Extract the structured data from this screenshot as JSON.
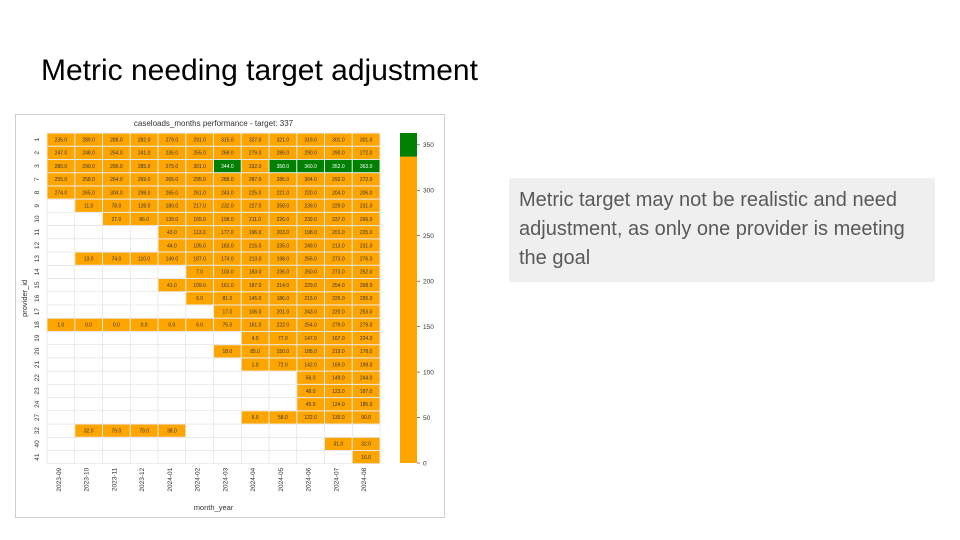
{
  "slide": {
    "title": "Metric needing target adjustment",
    "note": "Metric target may not be realistic and need adjustment, as only one provider is meeting the goal"
  },
  "colors": {
    "below_target": "#FFA500",
    "meets_target": "#008000",
    "grid": "#dddddd"
  },
  "chart_data": {
    "type": "heatmap",
    "title": "caseloads_months performance - target: 337",
    "xlabel": "month_year",
    "ylabel": "provider_id",
    "target": 337,
    "x_categories": [
      "2023-09",
      "2023-10",
      "2023-11",
      "2023-12",
      "2024-01",
      "2024-02",
      "2024-03",
      "2024-04",
      "2024-05",
      "2024-06",
      "2024-07",
      "2024-08"
    ],
    "y_categories": [
      "1",
      "2",
      "3",
      "7",
      "8",
      "9",
      "10",
      "11",
      "12",
      "13",
      "14",
      "15",
      "16",
      "17",
      "18",
      "19",
      "20",
      "21",
      "22",
      "23",
      "24",
      "27",
      "32",
      "40",
      "41"
    ],
    "values": [
      [
        235.0,
        289.0,
        288.0,
        282.0,
        279.0,
        291.0,
        315.0,
        327.0,
        321.0,
        319.0,
        301.0,
        301.0
      ],
      [
        247.0,
        248.0,
        254.0,
        241.0,
        235.0,
        255.0,
        269.0,
        279.0,
        286.0,
        290.0,
        290.0,
        272.0
      ],
      [
        280.0,
        290.0,
        290.0,
        285.0,
        275.0,
        301.0,
        344.0,
        332.0,
        358.0,
        360.0,
        352.0,
        363.0
      ],
      [
        255.0,
        258.0,
        264.0,
        269.0,
        265.0,
        295.0,
        288.0,
        287.0,
        286.0,
        304.0,
        292.0,
        272.0
      ],
      [
        274.0,
        265.0,
        304.0,
        298.0,
        265.0,
        261.0,
        243.0,
        225.0,
        221.0,
        220.0,
        204.0,
        206.0
      ],
      [
        null,
        11.0,
        78.0,
        128.0,
        180.0,
        217.0,
        232.0,
        227.0,
        258.0,
        239.0,
        229.0,
        231.0
      ],
      [
        null,
        null,
        27.0,
        86.0,
        139.0,
        165.0,
        198.0,
        211.0,
        226.0,
        239.0,
        237.0,
        266.0
      ],
      [
        null,
        null,
        null,
        null,
        43.0,
        113.0,
        177.0,
        196.0,
        203.0,
        198.0,
        201.0,
        225.0
      ],
      [
        null,
        null,
        null,
        null,
        44.0,
        105.0,
        183.0,
        215.0,
        235.0,
        249.0,
        213.0,
        231.0
      ],
      [
        null,
        13.0,
        74.0,
        110.0,
        149.0,
        187.0,
        174.0,
        213.0,
        198.0,
        256.0,
        273.0,
        276.0
      ],
      [
        null,
        null,
        null,
        null,
        null,
        7.0,
        103.0,
        183.0,
        236.0,
        250.0,
        273.0,
        262.0
      ],
      [
        null,
        null,
        null,
        null,
        41.0,
        109.0,
        161.0,
        187.0,
        214.0,
        229.0,
        254.0,
        268.0
      ],
      [
        null,
        null,
        null,
        null,
        null,
        6.0,
        81.0,
        145.0,
        186.0,
        215.0,
        225.0,
        255.0
      ],
      [
        null,
        null,
        null,
        null,
        null,
        null,
        17.0,
        106.0,
        201.0,
        243.0,
        220.0,
        253.0
      ],
      [
        1.0,
        0.0,
        0.0,
        0.0,
        0.0,
        6.0,
        75.0,
        161.0,
        222.0,
        254.0,
        279.0,
        279.0
      ],
      [
        null,
        null,
        null,
        null,
        null,
        null,
        null,
        4.0,
        77.0,
        147.0,
        167.0,
        224.0
      ],
      [
        null,
        null,
        null,
        null,
        null,
        null,
        18.0,
        85.0,
        150.0,
        188.0,
        219.0,
        178.0
      ],
      [
        null,
        null,
        null,
        null,
        null,
        null,
        null,
        1.0,
        72.0,
        142.0,
        169.0,
        199.0
      ],
      [
        null,
        null,
        null,
        null,
        null,
        null,
        null,
        null,
        null,
        56.0,
        149.0,
        244.0
      ],
      [
        null,
        null,
        null,
        null,
        null,
        null,
        null,
        null,
        null,
        48.0,
        123.0,
        187.0
      ],
      [
        null,
        null,
        null,
        null,
        null,
        null,
        null,
        null,
        null,
        45.0,
        124.0,
        185.0
      ],
      [
        null,
        null,
        null,
        null,
        null,
        null,
        null,
        6.0,
        58.0,
        122.0,
        130.0,
        90.0
      ],
      [
        null,
        32.0,
        79.0,
        79.0,
        38.0,
        null,
        null,
        null,
        null,
        null,
        null,
        null
      ],
      [
        null,
        null,
        null,
        null,
        null,
        null,
        null,
        null,
        null,
        null,
        31.0,
        32.0
      ],
      [
        null,
        null,
        null,
        null,
        null,
        null,
        null,
        null,
        null,
        null,
        null,
        16.0
      ]
    ],
    "colorbar": {
      "vmin": 0,
      "vmax": 363,
      "ticks": [
        "0",
        "50",
        "100",
        "150",
        "200",
        "250",
        "300",
        "350"
      ]
    }
  }
}
